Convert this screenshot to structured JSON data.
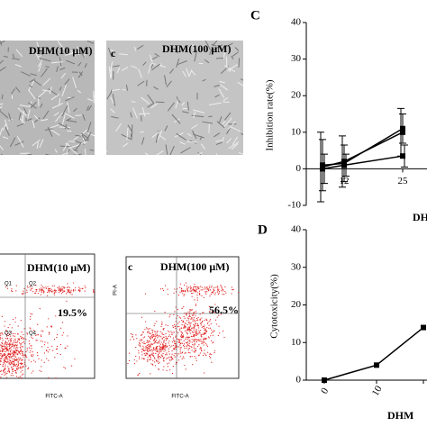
{
  "micrographs": [
    {
      "label": "DHM(10 μM)"
    },
    {
      "letter": "c",
      "label": "DHM(100 μM)"
    }
  ],
  "flow_plots": [
    {
      "label": "DHM(10 μM)",
      "percent": "19.5%",
      "x_label": "FITC-A",
      "quadrants": [
        "Q1",
        "Q2",
        "Q3",
        "Q4"
      ]
    },
    {
      "letter": "c",
      "label": "DHM(100 μM)",
      "percent": "56.5%",
      "x_label": "FITC-A",
      "y_label": "PI-A"
    }
  ],
  "chart_data": [
    {
      "type": "line",
      "panel": "C",
      "y_label": "Inhibition rate(%)",
      "x_label": "DHM",
      "categories": [
        null,
        "12",
        "25"
      ],
      "series": [
        {
          "color": "#000000",
          "values": [
            0.5,
            2,
            10
          ],
          "errors": [
            9.5,
            7,
            6.5
          ]
        },
        {
          "color": "#000000",
          "values": [
            1,
            1.5,
            11
          ],
          "errors": [
            7,
            5,
            4
          ]
        },
        {
          "color": "#000000",
          "values": [
            0,
            1,
            3.5
          ],
          "errors": [
            4,
            3,
            3
          ]
        }
      ],
      "ylim": [
        -10,
        40
      ],
      "yticks": [
        -10,
        0,
        10,
        20,
        30,
        40
      ]
    },
    {
      "type": "line",
      "panel": "D",
      "y_label": "Cytotoxicity(%)",
      "x_label": "DHM",
      "categories": [
        "0",
        "10",
        null
      ],
      "series": [
        {
          "color": "#000000",
          "values": [
            0,
            4,
            14
          ]
        }
      ],
      "ylim": [
        0,
        40
      ],
      "yticks": [
        0,
        10,
        20,
        30,
        40
      ]
    }
  ]
}
